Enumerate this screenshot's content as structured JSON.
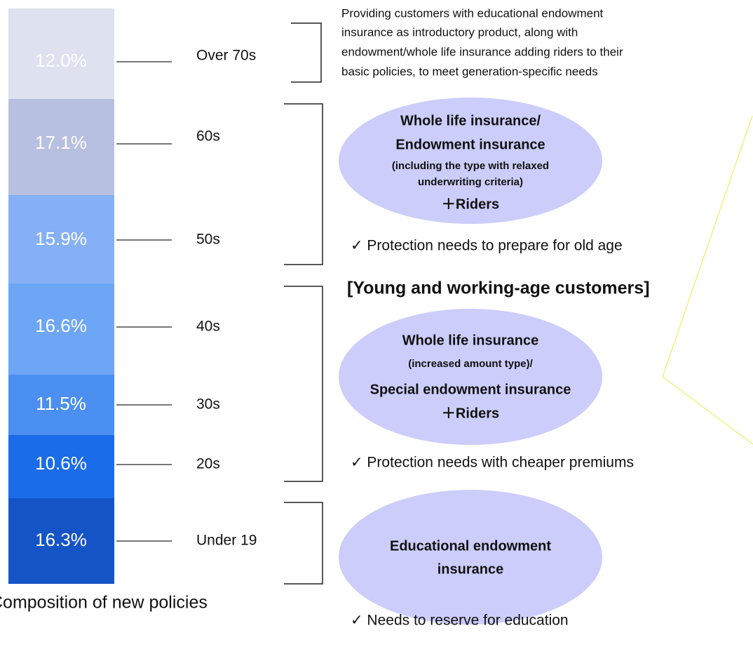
{
  "segments": [
    {
      "share": "12.0%",
      "age": "Over 70s",
      "color": "#dde1f0"
    },
    {
      "share": "17.1%",
      "age": "60s",
      "color": "#b7c0e0"
    },
    {
      "share": "15.9%",
      "age": "50s",
      "color": "#85b0f5"
    },
    {
      "share": "16.6%",
      "age": "40s",
      "color": "#6ea6f6"
    },
    {
      "share": "11.5%",
      "age": "30s",
      "color": "#4b8ff0"
    },
    {
      "share": "10.6%",
      "age": "20s",
      "color": "#1a6ce8"
    },
    {
      "share": "16.3%",
      "age": "Under 19",
      "color": "#1554c6"
    }
  ],
  "caption": "Composition of new policies",
  "intro": [
    "Providing customers with educational endowment",
    "insurance as introductory product, along with",
    "endowment/whole life insurance adding riders to their",
    "basic policies, to meet generation-specific needs"
  ],
  "senior": {
    "lines": [
      "Whole life insurance/",
      "Endowment insurance",
      "(including the type with relaxed",
      "underwriting criteria)",
      "＋Riders"
    ],
    "need": "✓  Protection needs to prepare for old age"
  },
  "young_heading": "[Young and working-age customers]",
  "young": {
    "lines": [
      "Whole life insurance",
      "(increased amount type)/",
      "Special endowment insurance",
      "＋Riders"
    ],
    "need": "✓  Protection needs with cheaper premiums"
  },
  "child": {
    "lines": [
      "Educational endowment",
      "insurance"
    ],
    "need": "✓  Needs to reserve for education"
  }
}
